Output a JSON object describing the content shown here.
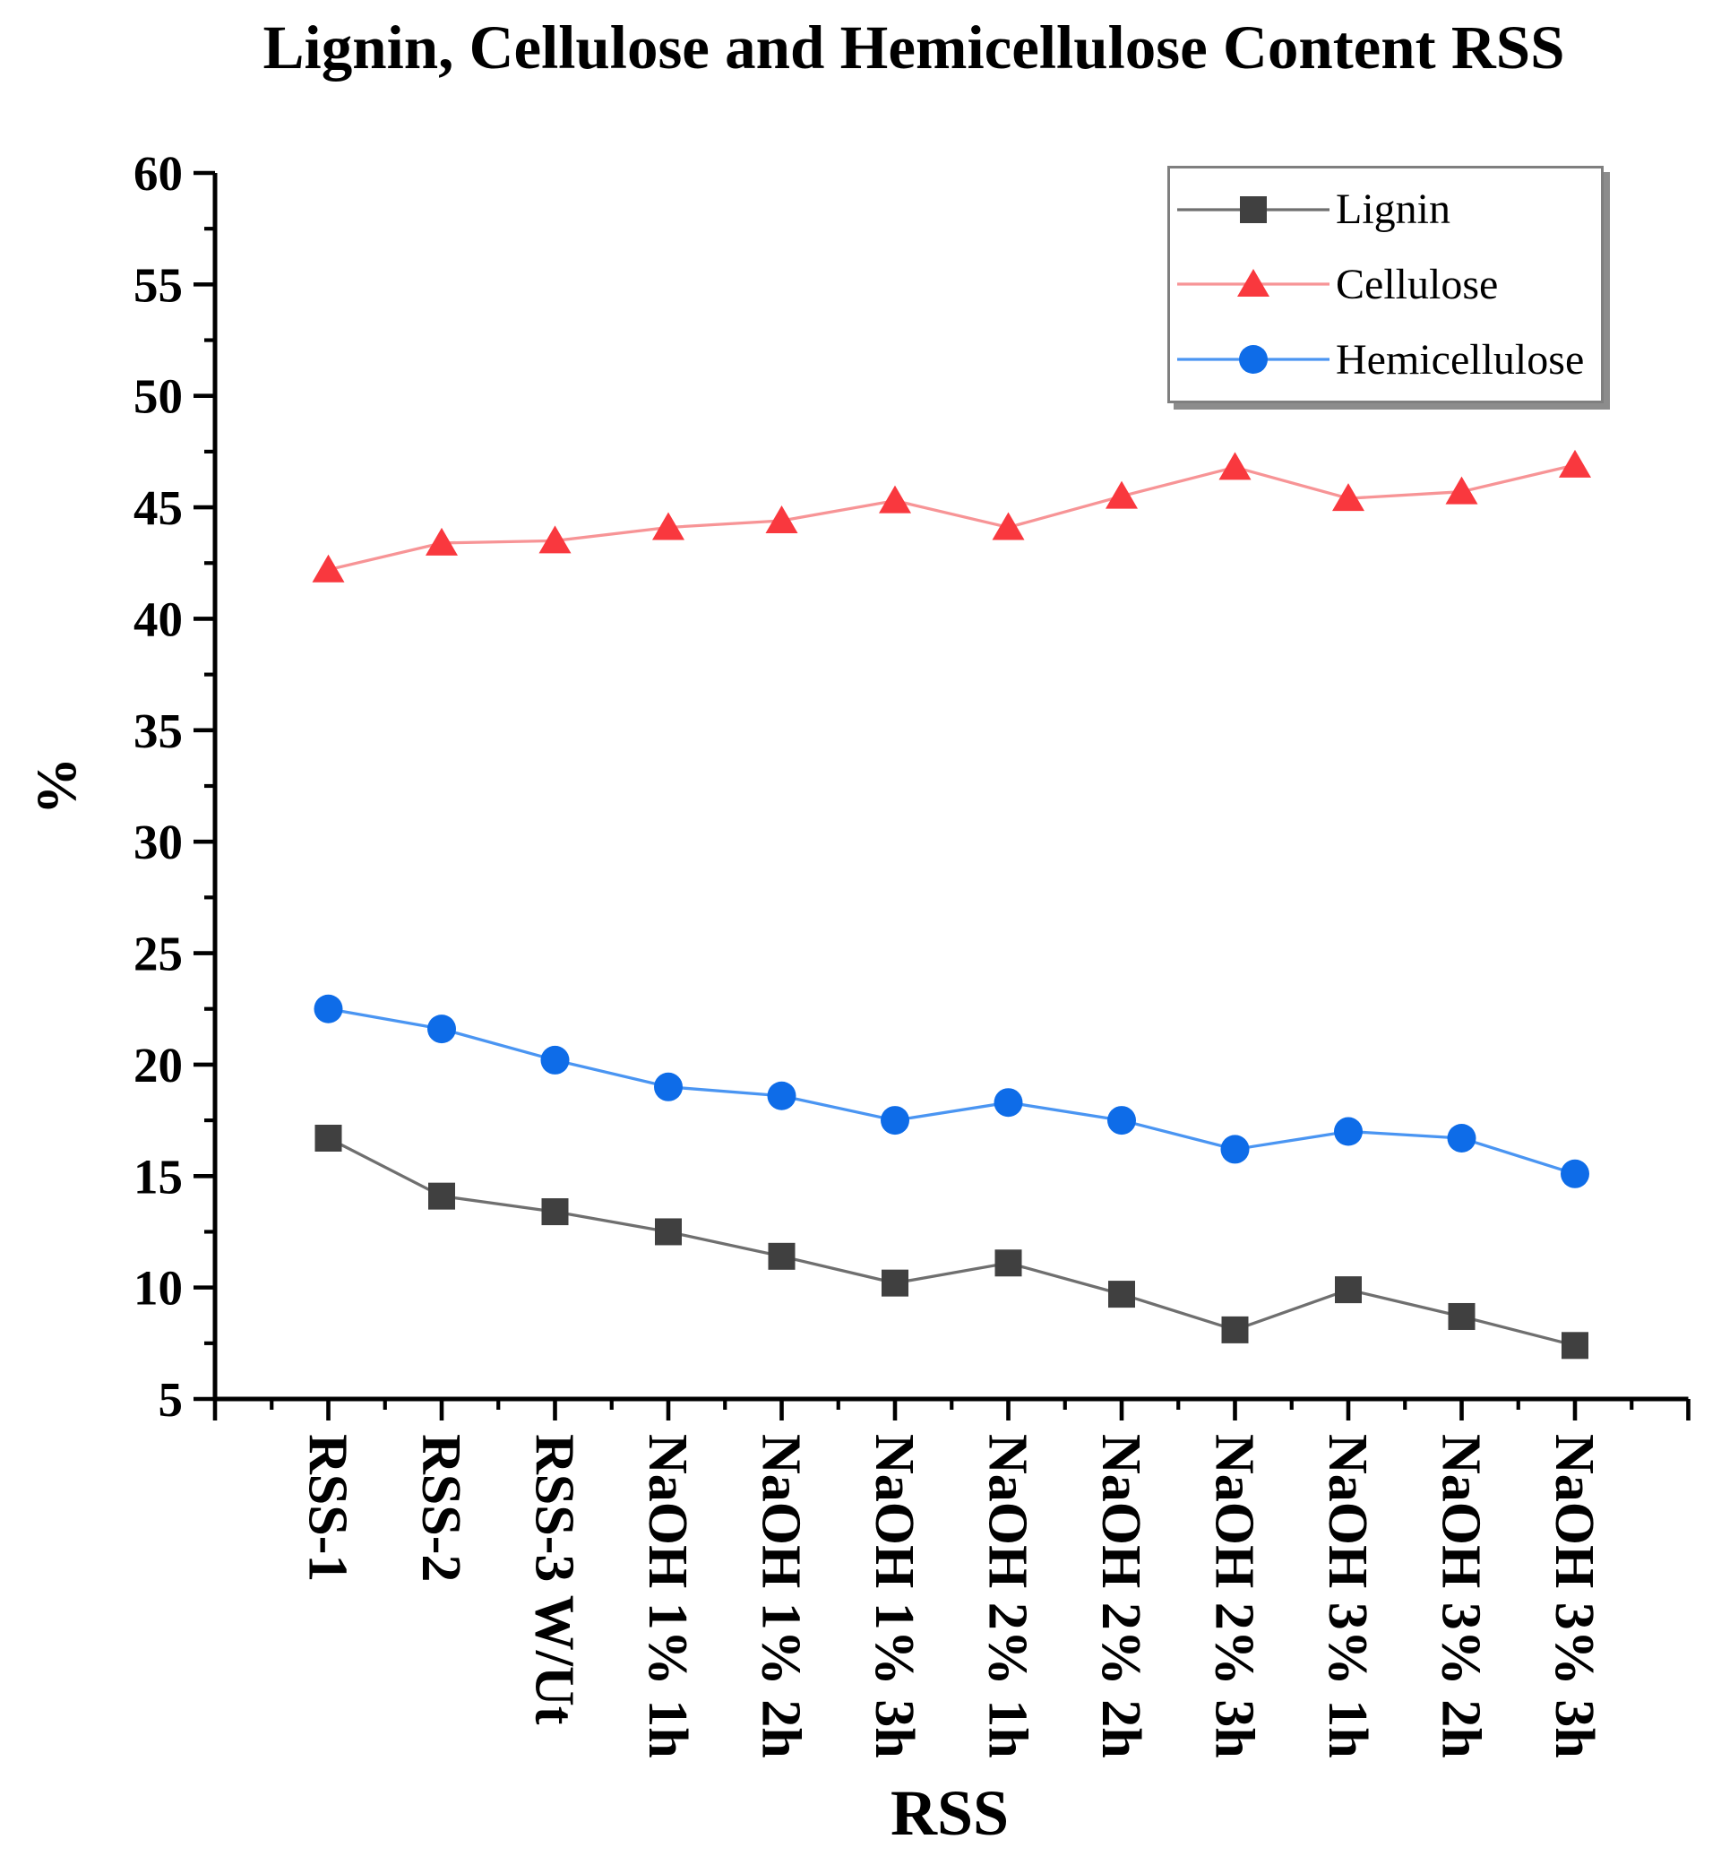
{
  "figure": {
    "background_color": "#ffffff",
    "text_color": "#000000"
  },
  "chart_data": {
    "type": "line",
    "title": "Lignin, Cellulose and Hemicellulose Content RSS",
    "xlabel": "RSS",
    "ylabel": "%",
    "ylim": [
      5,
      60
    ],
    "y_major_tick_step": 5,
    "y_minor_tick_step": 2.5,
    "grid": false,
    "legend_position": "top-right-inside",
    "y_tick_labels": [
      60,
      55,
      50,
      45,
      40,
      35,
      30,
      25,
      20,
      15,
      10,
      5
    ],
    "categories": [
      "RSS-1",
      "RSS-2",
      "RSS-3 W/Ut",
      "NaOH 1% 1h",
      "NaOH 1% 2h",
      "NaOH 1% 3h",
      "NaOH 2% 1h",
      "NaOH 2% 2h",
      "NaOH 2% 3h",
      "NaOH 3% 1h",
      "NaOH 3% 2h",
      "NaOH 3% 3h"
    ],
    "series": [
      {
        "name": "Lignin",
        "marker": "square",
        "marker_color": "#404040",
        "line_color": "#6f6f6f",
        "values": [
          16.7,
          14.1,
          13.4,
          12.5,
          11.4,
          10.2,
          11.1,
          9.7,
          8.1,
          9.9,
          8.7,
          7.4
        ]
      },
      {
        "name": "Cellulose",
        "marker": "triangle",
        "marker_color": "#f9383e",
        "line_color": "#f79496",
        "values": [
          42.2,
          43.4,
          43.5,
          44.1,
          44.4,
          45.3,
          44.1,
          45.5,
          46.8,
          45.4,
          45.7,
          46.9
        ]
      },
      {
        "name": "Hemicellulose",
        "marker": "circle",
        "marker_color": "#0e6ce8",
        "line_color": "#4a95f2",
        "values": [
          22.5,
          21.6,
          20.2,
          19.0,
          18.6,
          17.5,
          18.3,
          17.5,
          16.2,
          17.0,
          16.7,
          15.1
        ]
      }
    ]
  }
}
